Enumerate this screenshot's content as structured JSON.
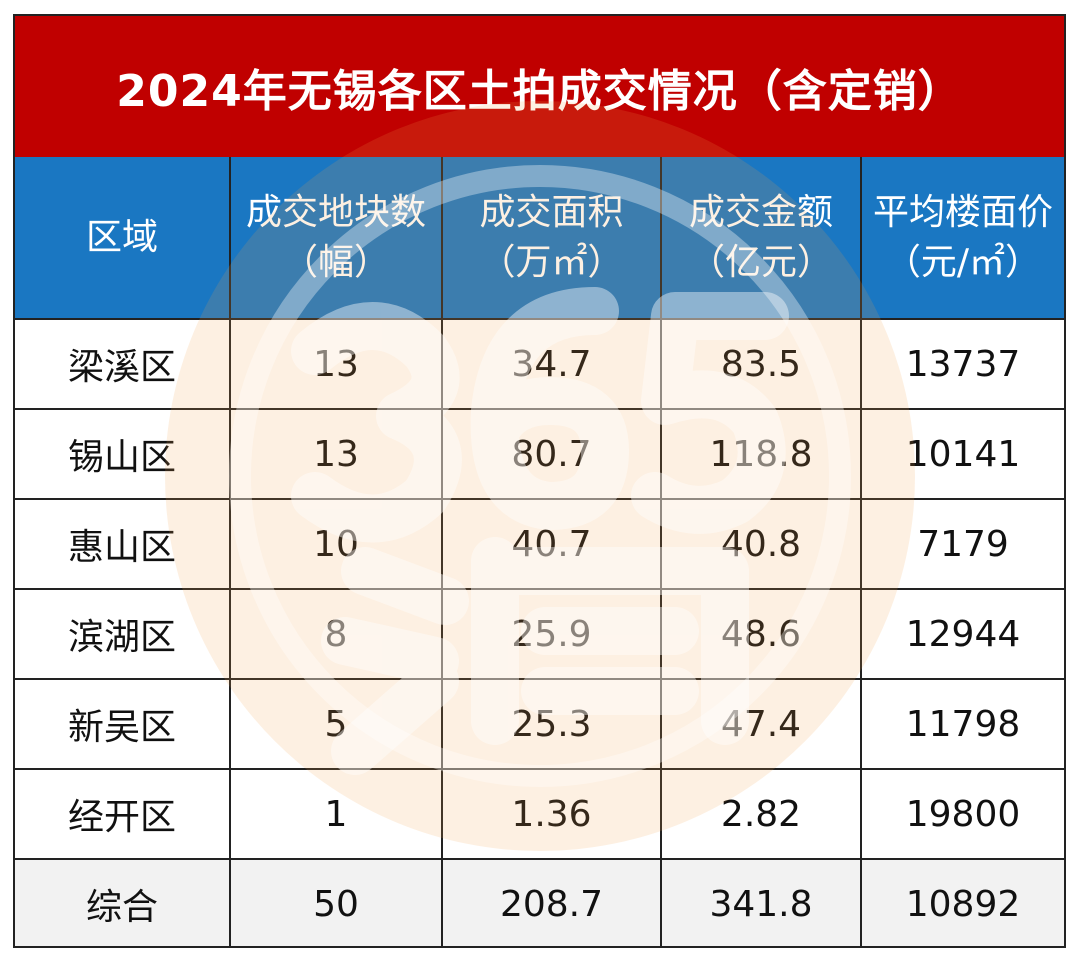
{
  "title": "2024年无锡各区土拍成交情况（含定销）",
  "watermark_icon": "365-logo-watermark",
  "colors": {
    "title_bg": "#c00000",
    "header_bg": "#1a77c2",
    "total_row_bg": "#f2f2f2"
  },
  "headers": [
    {
      "line1": "区域",
      "line2": ""
    },
    {
      "line1": "成交地块数",
      "line2": "（幅）"
    },
    {
      "line1": "成交面积",
      "line2": "（万㎡）"
    },
    {
      "line1": "成交金额",
      "line2": "（亿元）"
    },
    {
      "line1": "平均楼面价",
      "line2": "（元/㎡）"
    }
  ],
  "rows": [
    {
      "district": "梁溪区",
      "plots": "13",
      "area": "34.7",
      "amount": "83.5",
      "price": "13737"
    },
    {
      "district": "锡山区",
      "plots": "13",
      "area": "80.7",
      "amount": "118.8",
      "price": "10141"
    },
    {
      "district": "惠山区",
      "plots": "10",
      "area": "40.7",
      "amount": "40.8",
      "price": "7179"
    },
    {
      "district": "滨湖区",
      "plots": "8",
      "area": "25.9",
      "amount": "48.6",
      "price": "12944"
    },
    {
      "district": "新吴区",
      "plots": "5",
      "area": "25.3",
      "amount": "47.4",
      "price": "11798"
    },
    {
      "district": "经开区",
      "plots": "1",
      "area": "1.36",
      "amount": "2.82",
      "price": "19800"
    }
  ],
  "total": {
    "district": "综合",
    "plots": "50",
    "area": "208.7",
    "amount": "341.8",
    "price": "10892"
  }
}
